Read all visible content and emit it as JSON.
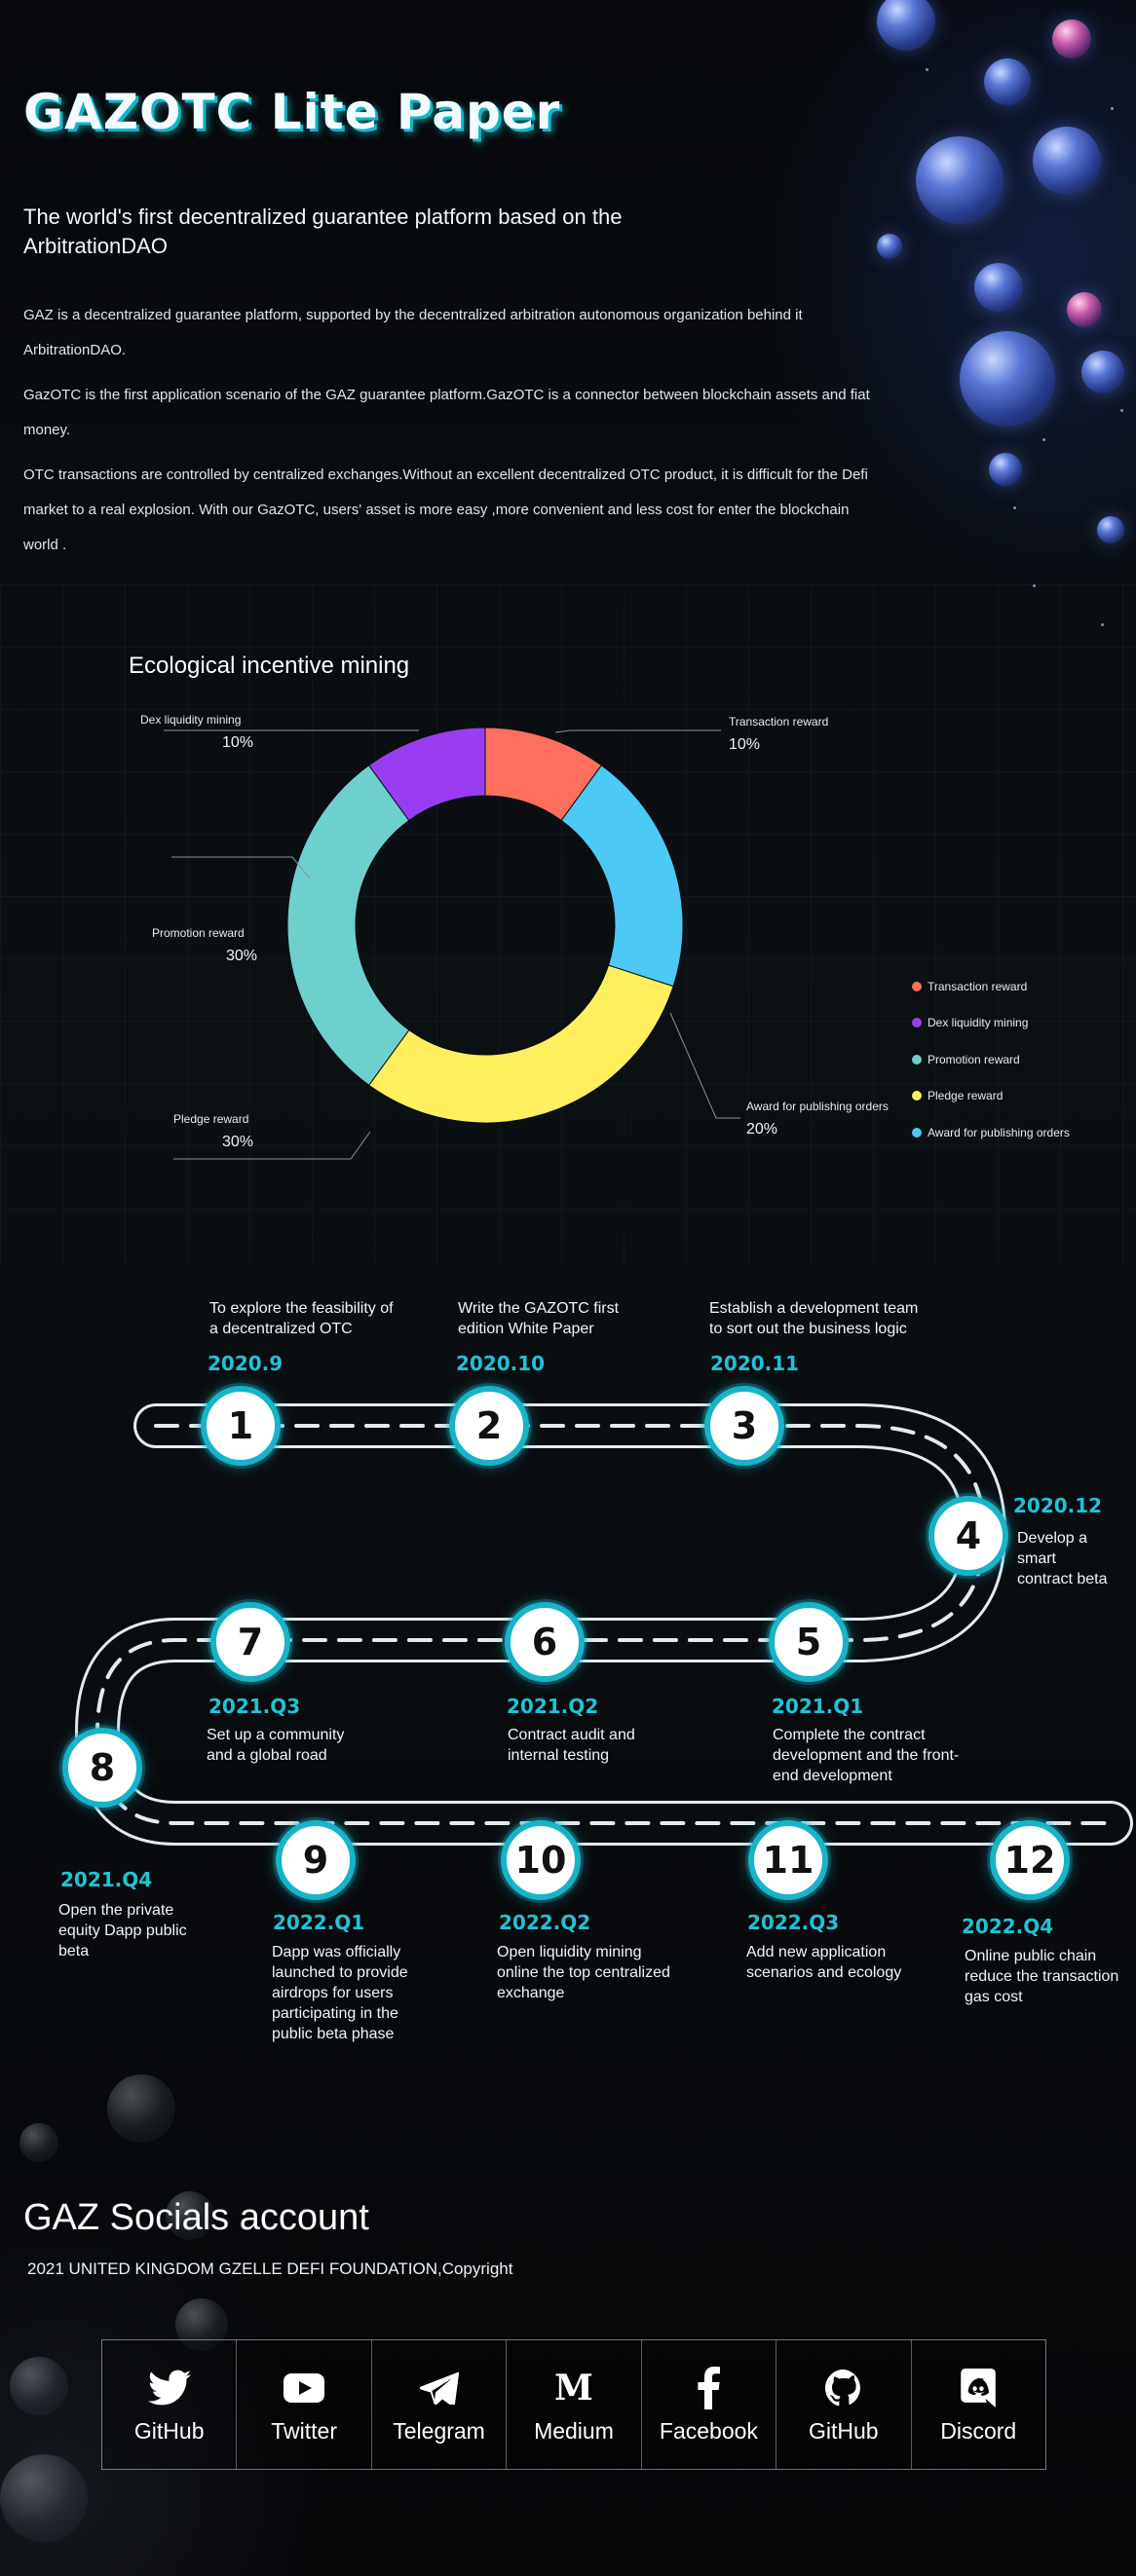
{
  "header": {
    "title": "GAZOTC Lite Paper",
    "subtitle": "The world's first decentralized guarantee platform based on the ArbitrationDAO"
  },
  "intro": {
    "p1": "GAZ is a decentralized guarantee platform, supported by the decentralized arbitration autonomous organization behind it ArbitrationDAO.",
    "p2": "GazOTC is the first application scenario of the GAZ guarantee platform.GazOTC is a connector between blockchain assets and fiat money.",
    "p3": "OTC transactions are controlled by centralized exchanges.Without an excellent decentralized OTC product, it is difficult for the Defi market to a real explosion. With our GazOTC, users' asset is more easy ,more convenient and less cost for enter the blockchain world ."
  },
  "mining": {
    "heading": "Ecological incentive mining"
  },
  "chart_data": {
    "type": "pie",
    "title": "Ecological incentive mining",
    "donut": true,
    "legend_position": "right",
    "slices": [
      {
        "name": "Transaction reward",
        "value": 10,
        "label": "10%",
        "color": "#ff6f5e"
      },
      {
        "name": "Award for publishing orders",
        "value": 20,
        "label": "20%",
        "color": "#4cc9f5"
      },
      {
        "name": "Pledge reward",
        "value": 30,
        "label": "30%",
        "color": "#ffef5e"
      },
      {
        "name": "Promotion reward",
        "value": 30,
        "label": "30%",
        "color": "#6ed0cc"
      },
      {
        "name": "Dex liquidity mining",
        "value": 10,
        "label": "10%",
        "color": "#9a3df0"
      }
    ],
    "legend": [
      {
        "name": "Transaction reward",
        "color": "#ff6f5e"
      },
      {
        "name": "Dex liquidity mining",
        "color": "#9a3df0"
      },
      {
        "name": "Promotion reward",
        "color": "#6ed0cc"
      },
      {
        "name": "Pledge reward",
        "color": "#ffef5e"
      },
      {
        "name": "Award for publishing orders",
        "color": "#4cc9f5"
      }
    ]
  },
  "roadmap": {
    "milestones": [
      {
        "num": "1",
        "date": "2020.9",
        "desc": "To explore the feasibility of a decentralized OTC"
      },
      {
        "num": "2",
        "date": "2020.10",
        "desc": "Write the GAZOTC first edition White Paper"
      },
      {
        "num": "3",
        "date": "2020.11",
        "desc": "Establish a development team to sort out the business logic"
      },
      {
        "num": "4",
        "date": "2020.12",
        "desc": "Develop a smart contract beta"
      },
      {
        "num": "5",
        "date": "2021.Q1",
        "desc": "Complete the contract development and the front-end development"
      },
      {
        "num": "6",
        "date": "2021.Q2",
        "desc": "Contract audit and internal testing"
      },
      {
        "num": "7",
        "date": "2021.Q3",
        "desc": "Set up a community and a global road"
      },
      {
        "num": "8",
        "date": "2021.Q4",
        "desc": "Open the private equity  Dapp public beta"
      },
      {
        "num": "9",
        "date": "2022.Q1",
        "desc": "Dapp was officially launched to provide airdrops for users participating in the public beta phase"
      },
      {
        "num": "10",
        "date": "2022.Q2",
        "desc": "Open liquidity mining online the top centralized exchange"
      },
      {
        "num": "11",
        "date": "2022.Q3",
        "desc": "Add new application scenarios and ecology"
      },
      {
        "num": "12",
        "date": "2022.Q4",
        "desc": "Online public chain reduce the transaction gas cost"
      }
    ]
  },
  "socials": {
    "heading": "GAZ Socials account",
    "copyright": "2021 UNITED KINGDOM GZELLE DEFI FOUNDATION,Copyright",
    "items": [
      {
        "label": "GitHub",
        "icon": "twitter-bird-icon"
      },
      {
        "label": "Twitter",
        "icon": "youtube-play-icon"
      },
      {
        "label": "Telegram",
        "icon": "telegram-plane-icon"
      },
      {
        "label": "Medium",
        "icon": "medium-m-icon"
      },
      {
        "label": "Facebook",
        "icon": "facebook-f-icon"
      },
      {
        "label": "GitHub",
        "icon": "github-cat-icon"
      },
      {
        "label": "Discord",
        "icon": "discord-icon"
      }
    ]
  }
}
